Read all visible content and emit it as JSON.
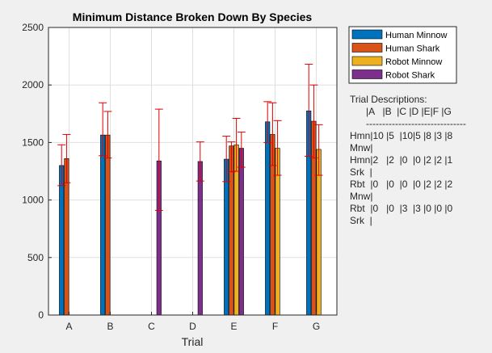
{
  "chart_data": {
    "type": "bar",
    "title": "Minimum Distance Broken Down By Species",
    "xlabel": "Trial",
    "ylabel": "",
    "categories": [
      "A",
      "B",
      "C",
      "D",
      "E",
      "F",
      "G"
    ],
    "ylim": [
      0,
      2500
    ],
    "yticks": [
      0,
      500,
      1000,
      1500,
      2000,
      2500
    ],
    "grid": true,
    "legend_position": "right",
    "series": [
      {
        "name": "Human Minnow",
        "color": "#0072bd",
        "values": [
          1300,
          1565,
          null,
          null,
          1355,
          1680,
          1775
        ],
        "err_low": [
          1125,
          1385,
          null,
          null,
          1160,
          1500,
          1380
        ],
        "err_high": [
          1480,
          1845,
          null,
          null,
          1555,
          1855,
          2180
        ]
      },
      {
        "name": "Human Shark",
        "color": "#d95319",
        "values": [
          1360,
          1565,
          null,
          null,
          1470,
          1570,
          1685
        ],
        "err_low": [
          1150,
          1365,
          null,
          null,
          1245,
          1300,
          1365
        ],
        "err_high": [
          1570,
          1770,
          null,
          null,
          1505,
          1845,
          2000
        ]
      },
      {
        "name": "Robot Minnow",
        "color": "#edb120",
        "values": [
          null,
          null,
          null,
          null,
          1480,
          1450,
          1440
        ],
        "err_low": [
          null,
          null,
          null,
          null,
          1250,
          1215,
          1215
        ],
        "err_high": [
          null,
          null,
          null,
          null,
          1710,
          1690,
          1655
        ]
      },
      {
        "name": "Robot Shark",
        "color": "#7e2f8e",
        "values": [
          null,
          null,
          1340,
          1335,
          1450,
          null,
          null
        ],
        "err_low": [
          null,
          null,
          910,
          1165,
          1285,
          null,
          null
        ],
        "err_high": [
          null,
          null,
          1790,
          1505,
          1590,
          null,
          null
        ]
      }
    ]
  },
  "trial_descriptions": {
    "title": "Trial Descriptions:",
    "lines": [
      "      |A   |B  |C |D |E|F |G",
      "      -------------------------------",
      "Hmn|10 |5  |10|5 |8 |3 |8",
      "Mnw|",
      "",
      "Hmn|2   |2  |0  |0 |2 |2 |1",
      "Srk  |",
      "",
      "Rbt  |0   |0  |0  |0 |2 |2 |2",
      "Mnw|",
      "",
      "Rbt  |0   |0  |3  |3 |0 |0 |0",
      "Srk  |"
    ]
  }
}
